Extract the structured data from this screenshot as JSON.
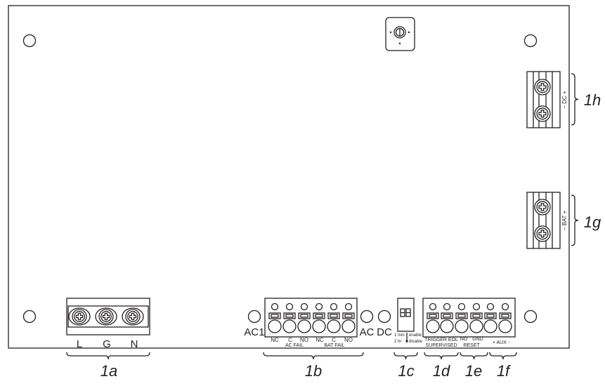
{
  "callouts": {
    "c1a": "1a",
    "c1b": "1b",
    "c1c": "1c",
    "c1d": "1d",
    "c1e": "1e",
    "c1f": "1f",
    "c1g": "1g",
    "c1h": "1h"
  },
  "ac_input": {
    "labels": [
      "L",
      "G",
      "N"
    ]
  },
  "indicators": {
    "ac1": "AC1",
    "ac": "AC",
    "dc": "DC"
  },
  "relay_block": {
    "pins": [
      "NC",
      "C",
      "NO",
      "NC",
      "C",
      "NO"
    ],
    "group1": "AC FAIL",
    "group2": "BAT FAIL"
  },
  "dip_switch": {
    "line1_left": "1 min",
    "line1_right": "enable",
    "line2_left": "2 hr",
    "line2_right": "disable"
  },
  "input_block": {
    "trigger": "TRIGGER EOL",
    "supervised": "SUPERVISED",
    "no": "NO",
    "gnd": "GND",
    "reset": "RESET",
    "aux": "+ AUX -"
  },
  "dc_terminal": {
    "label": "– DC +"
  },
  "bat_terminal": {
    "label": "– BAT +"
  },
  "colors": {
    "line": "#231f20",
    "background": "#ffffff"
  }
}
